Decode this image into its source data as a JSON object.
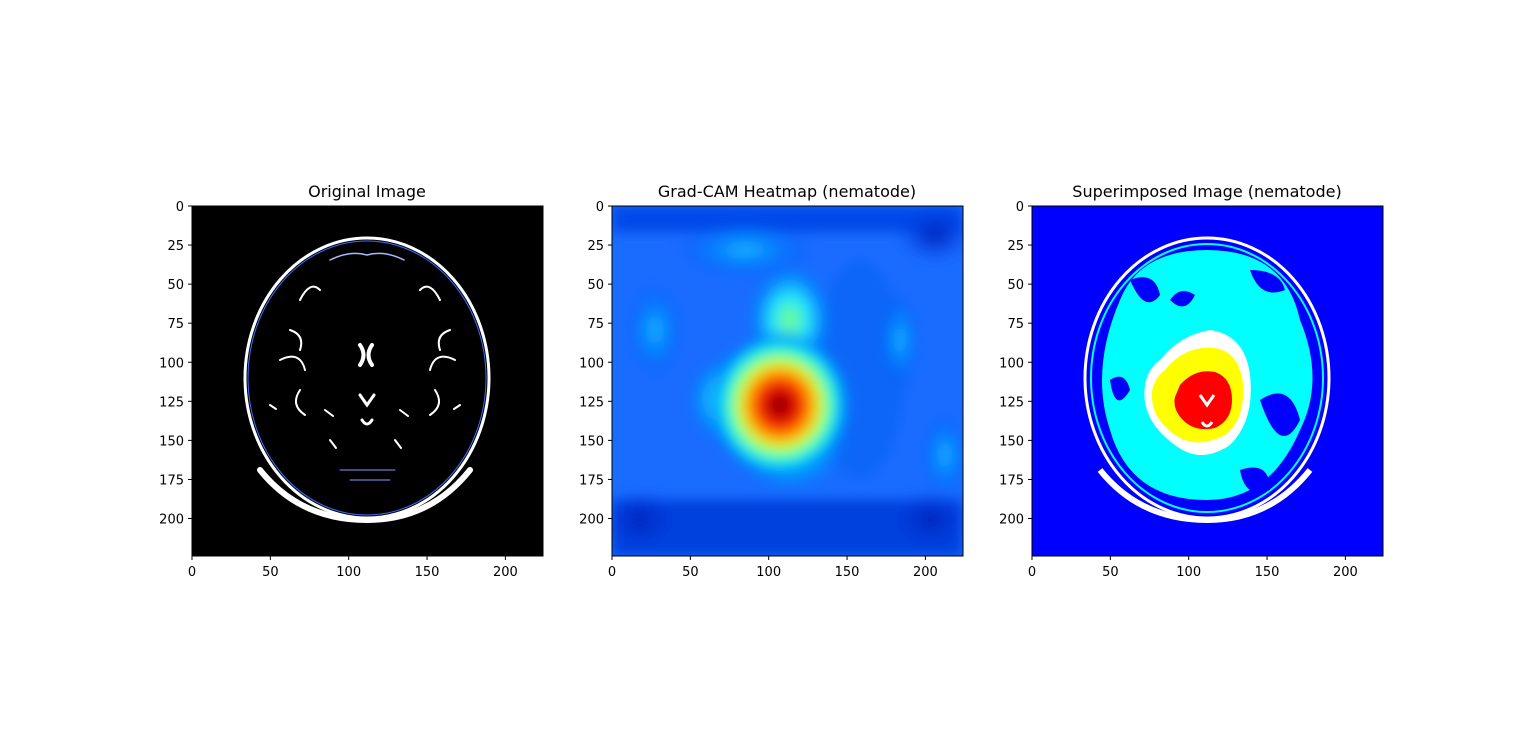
{
  "figure": {
    "background": "#ffffff"
  },
  "chart_data": [
    {
      "type": "heatmap",
      "title": "Original Image",
      "image": "brain MRI axial slice, black background with white/blue edge contours",
      "xlim": [
        0,
        224
      ],
      "ylim": [
        224,
        0
      ],
      "x_ticks": [
        0,
        50,
        100,
        150,
        200
      ],
      "y_ticks": [
        0,
        25,
        50,
        75,
        100,
        125,
        150,
        175,
        200
      ],
      "background_color": "#000000"
    },
    {
      "type": "heatmap",
      "title": "Grad-CAM Heatmap (nematode)",
      "colormap": "jet",
      "xlim": [
        0,
        224
      ],
      "ylim": [
        224,
        0
      ],
      "x_ticks": [
        0,
        50,
        100,
        150,
        200
      ],
      "y_ticks": [
        0,
        25,
        50,
        75,
        100,
        125,
        150,
        175,
        200
      ],
      "peak": {
        "x": 108,
        "y": 127
      },
      "hot_regions": [
        {
          "x": 108,
          "y": 127,
          "intensity": 1.0
        },
        {
          "x": 112,
          "y": 90,
          "intensity": 0.55
        },
        {
          "x": 75,
          "y": 120,
          "intensity": 0.45
        },
        {
          "x": 120,
          "y": 155,
          "intensity": 0.5
        },
        {
          "x": 185,
          "y": 90,
          "intensity": 0.35
        }
      ]
    },
    {
      "type": "heatmap",
      "title": "Superimposed Image (nematode)",
      "xlim": [
        0,
        224
      ],
      "ylim": [
        224,
        0
      ],
      "x_ticks": [
        0,
        50,
        100,
        150,
        200
      ],
      "y_ticks": [
        0,
        25,
        50,
        75,
        100,
        125,
        150,
        175,
        200
      ],
      "background_color": "#0000ff",
      "levels_colors": [
        "#0000ff",
        "#00ffff",
        "#ffffff",
        "#ffff00",
        "#ff0000"
      ]
    }
  ]
}
